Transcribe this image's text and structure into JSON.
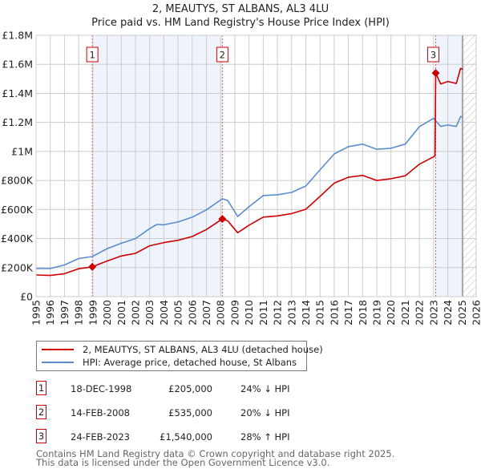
{
  "title_line1": "2, MEAUTYS, ST ALBANS, AL3 4LU",
  "title_line2": "Price paid vs. HM Land Registry's House Price Index (HPI)",
  "colors": {
    "price": "#cc0000",
    "hpi": "#5b8ccc",
    "shade": "#eef3fc",
    "grid": "#cccccc"
  },
  "chart_data": {
    "type": "line",
    "title": "Price paid vs. HM Land Registry's House Price Index (HPI)",
    "xlim": [
      1995,
      2026
    ],
    "ylim": [
      0,
      1800000
    ],
    "x_ticks": [
      "1995",
      "1996",
      "1997",
      "1998",
      "1999",
      "2000",
      "2001",
      "2002",
      "2003",
      "2004",
      "2005",
      "2006",
      "2007",
      "2008",
      "2009",
      "2010",
      "2011",
      "2012",
      "2013",
      "2014",
      "2015",
      "2016",
      "2017",
      "2018",
      "2019",
      "2020",
      "2021",
      "2022",
      "2023",
      "2024",
      "2025",
      "2026"
    ],
    "y_ticks": [
      {
        "value": 0,
        "label": "£0"
      },
      {
        "value": 200000,
        "label": "£200K"
      },
      {
        "value": 400000,
        "label": "£400K"
      },
      {
        "value": 600000,
        "label": "£600K"
      },
      {
        "value": 800000,
        "label": "£800K"
      },
      {
        "value": 1000000,
        "label": "£1M"
      },
      {
        "value": 1200000,
        "label": "£1.2M"
      },
      {
        "value": 1400000,
        "label": "£1.4M"
      },
      {
        "value": 1600000,
        "label": "£1.6M"
      },
      {
        "value": 1800000,
        "label": "£1.8M"
      }
    ],
    "grid": true,
    "data_end_year": 2025.05,
    "series": [
      {
        "name": "2, MEAUTYS, ST ALBANS, AL3 4LU (detached house)",
        "color": "#cc0000",
        "points": [
          [
            1995,
            149000
          ],
          [
            1996,
            146000
          ],
          [
            1997,
            158000
          ],
          [
            1998,
            192000
          ],
          [
            1998.96,
            205000
          ],
          [
            2000,
            245000
          ],
          [
            2001,
            280000
          ],
          [
            2002,
            298000
          ],
          [
            2003,
            350000
          ],
          [
            2004,
            372000
          ],
          [
            2005,
            388000
          ],
          [
            2006,
            414000
          ],
          [
            2007,
            462000
          ],
          [
            2008.12,
            535000
          ],
          [
            2008.5,
            522000
          ],
          [
            2009.2,
            440000
          ],
          [
            2010,
            492000
          ],
          [
            2011,
            548000
          ],
          [
            2012,
            556000
          ],
          [
            2013,
            572000
          ],
          [
            2014,
            602000
          ],
          [
            2015,
            690000
          ],
          [
            2016,
            782000
          ],
          [
            2017,
            822000
          ],
          [
            2018,
            835000
          ],
          [
            2019,
            800000
          ],
          [
            2020,
            812000
          ],
          [
            2021,
            832000
          ],
          [
            2022,
            912000
          ],
          [
            2023.1,
            968000
          ],
          [
            2023.15,
            1540000
          ],
          [
            2023.5,
            1465000
          ],
          [
            2024,
            1482000
          ],
          [
            2024.6,
            1468000
          ],
          [
            2024.9,
            1572000
          ],
          [
            2025.05,
            1565000
          ]
        ]
      },
      {
        "name": "HPI: Average price, detached house, St Albans",
        "color": "#5b8ccc",
        "points": [
          [
            1995,
            193000
          ],
          [
            1996,
            193000
          ],
          [
            1997,
            218000
          ],
          [
            1998,
            262000
          ],
          [
            1998.96,
            276000
          ],
          [
            2000,
            330000
          ],
          [
            2001,
            368000
          ],
          [
            2002,
            400000
          ],
          [
            2003,
            468000
          ],
          [
            2003.5,
            497000
          ],
          [
            2004,
            495000
          ],
          [
            2005,
            514000
          ],
          [
            2006,
            547000
          ],
          [
            2007,
            598000
          ],
          [
            2008.12,
            674000
          ],
          [
            2008.5,
            662000
          ],
          [
            2009.2,
            552000
          ],
          [
            2010,
            619000
          ],
          [
            2011,
            696000
          ],
          [
            2012,
            702000
          ],
          [
            2013,
            718000
          ],
          [
            2014,
            762000
          ],
          [
            2015,
            873000
          ],
          [
            2016,
            983000
          ],
          [
            2017,
            1033000
          ],
          [
            2018,
            1050000
          ],
          [
            2019,
            1015000
          ],
          [
            2020,
            1022000
          ],
          [
            2021,
            1050000
          ],
          [
            2022,
            1171000
          ],
          [
            2023,
            1228000
          ],
          [
            2023.5,
            1172000
          ],
          [
            2024,
            1182000
          ],
          [
            2024.6,
            1172000
          ],
          [
            2024.9,
            1240000
          ],
          [
            2025.05,
            1238000
          ]
        ]
      }
    ],
    "sales": [
      {
        "id": "1",
        "year": 1998.96,
        "value": 205000
      },
      {
        "id": "2",
        "year": 2008.12,
        "value": 535000
      },
      {
        "id": "3",
        "year": 2023.15,
        "value": 1540000
      }
    ]
  },
  "legend": {
    "price_label": "2, MEAUTYS, ST ALBANS, AL3 4LU (detached house)",
    "hpi_label": "HPI: Average price, detached house, St Albans"
  },
  "sales_table": [
    {
      "id": "1",
      "date": "18-DEC-1998",
      "price": "£205,000",
      "hpi": "24% ↓ HPI"
    },
    {
      "id": "2",
      "date": "14-FEB-2008",
      "price": "£535,000",
      "hpi": "20% ↓ HPI"
    },
    {
      "id": "3",
      "date": "24-FEB-2023",
      "price": "£1,540,000",
      "hpi": "28% ↑ HPI"
    }
  ],
  "footer": {
    "line1": "Contains HM Land Registry data © Crown copyright and database right 2025.",
    "line2": "This data is licensed under the Open Government Licence v3.0."
  }
}
